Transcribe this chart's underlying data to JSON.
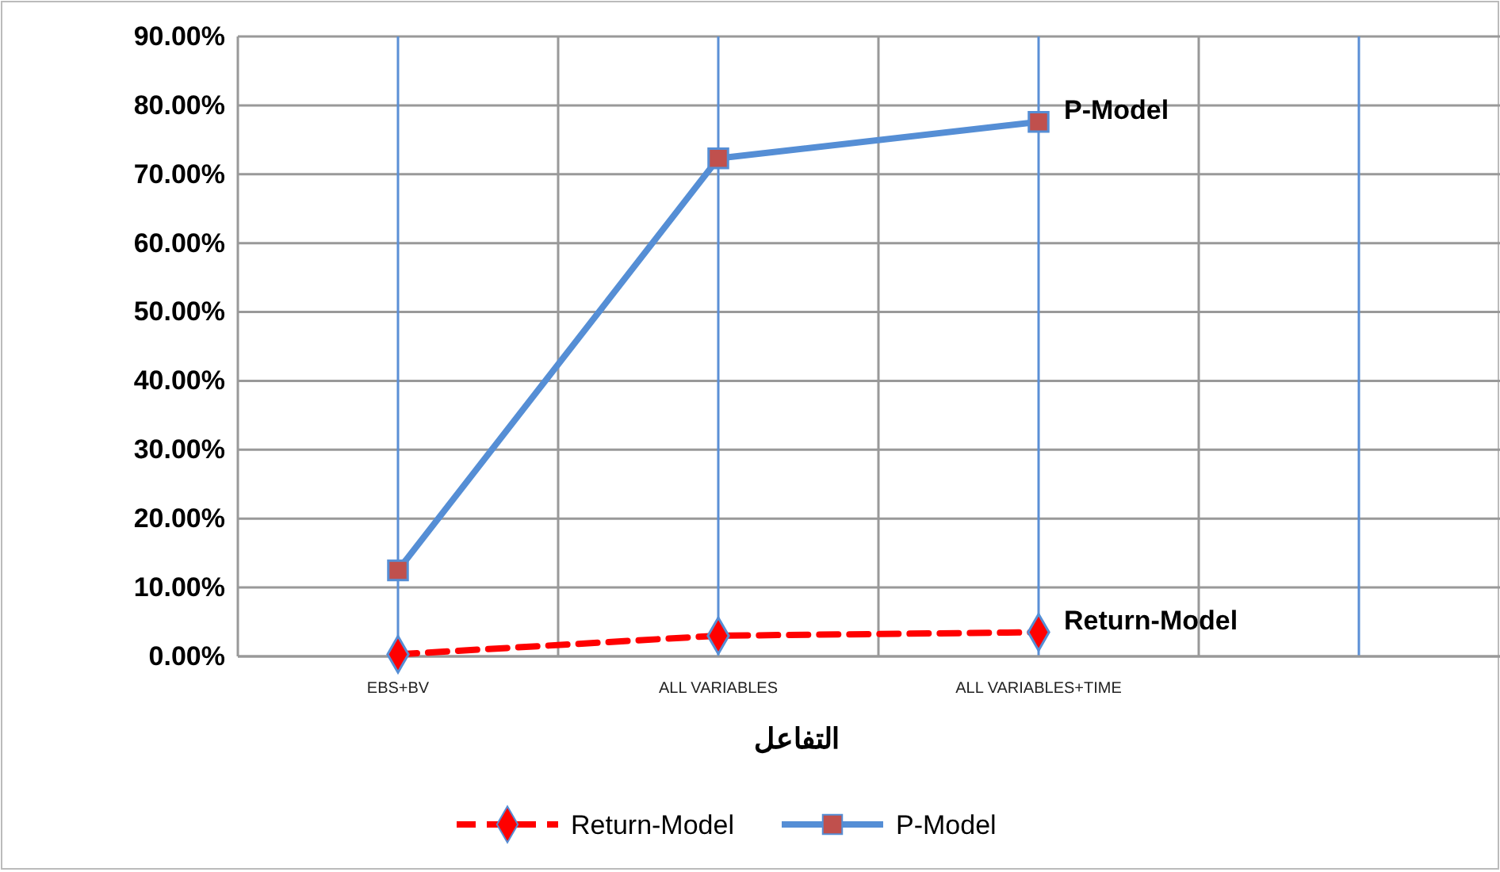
{
  "chart_data": {
    "type": "line",
    "xlabel": "التفاعل",
    "categories": [
      "EBS+BV",
      null,
      "ALL VARIABLES",
      null,
      "ALL VARIABLES+TIME",
      null,
      null
    ],
    "series": [
      {
        "name": "Return-Model",
        "color": "#ff0000",
        "values": [
          0.3,
          null,
          3.0,
          null,
          3.5,
          null,
          null
        ],
        "marker": "diamond",
        "line_style": "dashed"
      },
      {
        "name": "P-Model",
        "color": "#558ed5",
        "values": [
          12.5,
          null,
          72.3,
          null,
          77.6,
          null,
          null
        ],
        "marker": "square",
        "line_style": "solid"
      }
    ],
    "ylim": [
      0,
      90
    ],
    "yticks": [
      {
        "value": 0,
        "label": "0.00%"
      },
      {
        "value": 10,
        "label": "10.00%"
      },
      {
        "value": 20,
        "label": "20.00%"
      },
      {
        "value": 30,
        "label": "30.00%"
      },
      {
        "value": 40,
        "label": "40.00%"
      },
      {
        "value": 50,
        "label": "50.00%"
      },
      {
        "value": 60,
        "label": "60.00%"
      },
      {
        "value": 70,
        "label": "70.00%"
      },
      {
        "value": 80,
        "label": "80.00%"
      },
      {
        "value": 90,
        "label": "90.00%"
      }
    ],
    "grid": true,
    "legend": "bottom"
  }
}
